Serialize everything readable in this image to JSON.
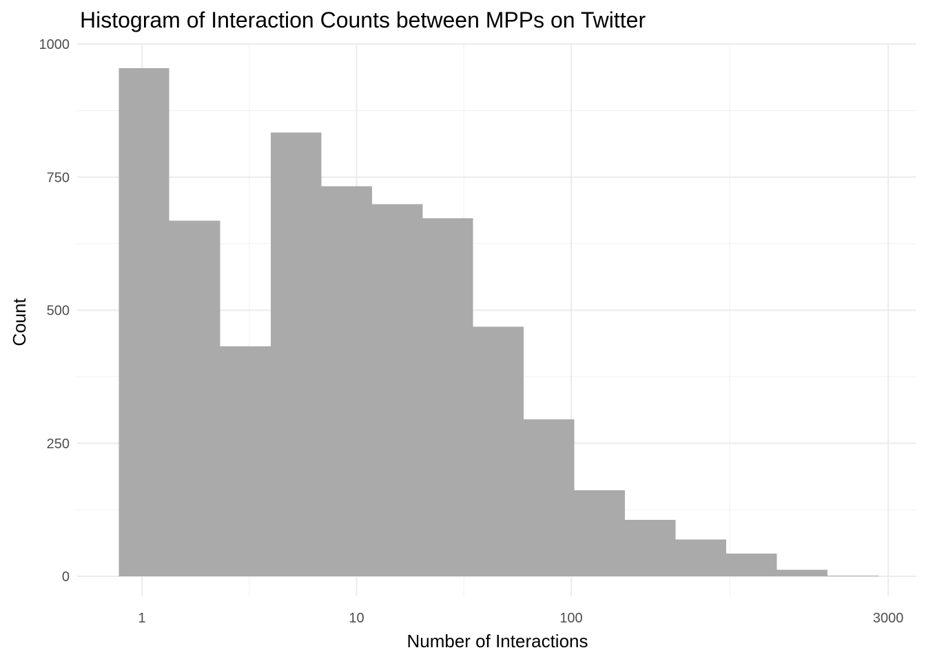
{
  "chart_data": {
    "type": "bar",
    "subtype": "histogram",
    "title": "Histogram of Interaction Counts between MPPs on Twitter",
    "xlabel": "Number of Interactions",
    "ylabel": "Count",
    "x_scale": "log10",
    "xlim": [
      0.8,
      3000
    ],
    "ylim": [
      0,
      1000
    ],
    "x_ticks": [
      1,
      10,
      100,
      3000
    ],
    "x_tick_labels": [
      "1",
      "10",
      "100",
      "3000"
    ],
    "y_ticks": [
      0,
      250,
      500,
      750,
      1000
    ],
    "y_tick_labels": [
      "0",
      "250",
      "500",
      "750",
      "1000"
    ],
    "grid": true,
    "legend": "none",
    "bar_color": "#aaaaaa",
    "bins": [
      {
        "x_start": 0.78,
        "x_end": 1.34,
        "count": 955
      },
      {
        "x_start": 1.34,
        "x_end": 2.31,
        "count": 668
      },
      {
        "x_start": 2.31,
        "x_end": 3.98,
        "count": 432
      },
      {
        "x_start": 3.98,
        "x_end": 6.85,
        "count": 834
      },
      {
        "x_start": 6.85,
        "x_end": 11.8,
        "count": 733
      },
      {
        "x_start": 11.8,
        "x_end": 20.3,
        "count": 699
      },
      {
        "x_start": 20.3,
        "x_end": 34.9,
        "count": 673
      },
      {
        "x_start": 34.9,
        "x_end": 60.1,
        "count": 469
      },
      {
        "x_start": 60.1,
        "x_end": 103.5,
        "count": 295
      },
      {
        "x_start": 103.5,
        "x_end": 178,
        "count": 162
      },
      {
        "x_start": 178,
        "x_end": 307,
        "count": 106
      },
      {
        "x_start": 307,
        "x_end": 528,
        "count": 69
      },
      {
        "x_start": 528,
        "x_end": 909,
        "count": 43
      },
      {
        "x_start": 909,
        "x_end": 1565,
        "count": 12
      },
      {
        "x_start": 1565,
        "x_end": 2700,
        "count": 1
      }
    ]
  }
}
